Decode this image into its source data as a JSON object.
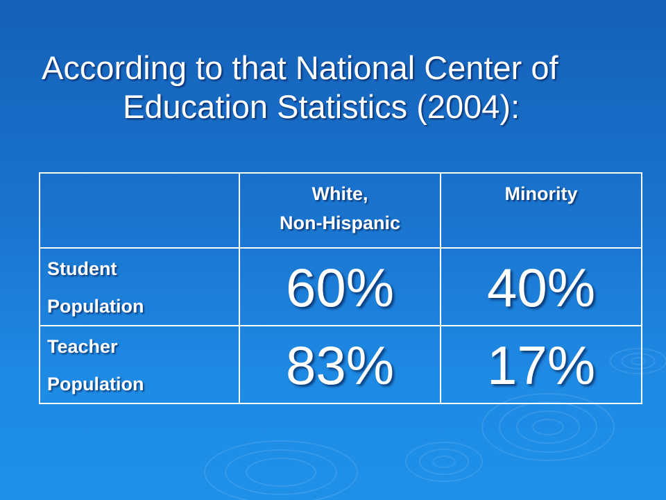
{
  "title": {
    "line1": "According to that National Center of",
    "line2": "Education Statistics (2004):"
  },
  "table": {
    "header": {
      "col1": [
        "White,",
        "Non-Hispanic"
      ],
      "col2": "Minority"
    },
    "rows": [
      {
        "label": [
          "Student",
          "Population"
        ],
        "white": "60%",
        "minority": "40%"
      },
      {
        "label": [
          "Teacher",
          "Population"
        ],
        "white": "83%",
        "minority": "17%"
      }
    ]
  }
}
